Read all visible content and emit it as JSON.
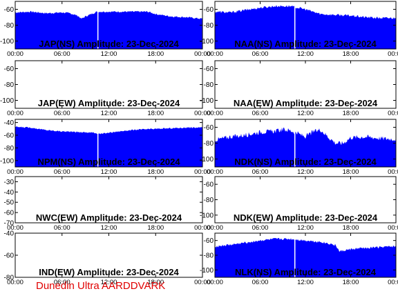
{
  "footer_text": "Dunedin Ultra AARDDVARK",
  "colors": {
    "fill": "#0000ff",
    "axis": "#000000",
    "gap": "#ffffff",
    "footer": "#e00000"
  },
  "chart_data": [
    {
      "type": "area",
      "title": "JAP(NS) Amplitude: 23-Dec-2024",
      "xticks": [
        "00:00",
        "06:00",
        "12:00",
        "18:00",
        "00:00"
      ],
      "xlim": [
        0,
        24
      ],
      "ylim": [
        -110,
        -50
      ],
      "yticks": [
        -60,
        -80,
        -100
      ],
      "gap_hours": 10.6,
      "noise": 1.0,
      "x": [
        0,
        2,
        4,
        6,
        7,
        8,
        8.5,
        9,
        10,
        10.5,
        12,
        14,
        16,
        17,
        18,
        20,
        22,
        24
      ],
      "values": [
        -64,
        -63,
        -65,
        -64,
        -65,
        -68,
        -72,
        -69,
        -65,
        -63,
        -63,
        -63,
        -63,
        -63,
        -66,
        -69,
        -70,
        -72
      ]
    },
    {
      "type": "area",
      "title": "NAA(NS) Amplitude: 23-Dec-2024",
      "xticks": [
        "00:00",
        "06:00",
        "12:00",
        "18:00",
        "00:00"
      ],
      "xlim": [
        0,
        24
      ],
      "ylim": [
        -110,
        -50
      ],
      "yticks": [
        -60,
        -80,
        -100
      ],
      "gap_hours": 10.6,
      "noise": 1.5,
      "x": [
        0,
        2,
        4,
        6,
        8,
        10,
        12,
        13,
        14,
        16,
        18,
        20,
        22,
        24
      ],
      "values": [
        -63,
        -64,
        -61,
        -58,
        -56,
        -56,
        -60,
        -63,
        -66,
        -67,
        -68,
        -70,
        -71,
        -71
      ]
    },
    {
      "type": "area",
      "title": "JAP(EW) Amplitude: 23-Dec-2024",
      "xticks": [
        "00:00",
        "06:00",
        "12:00",
        "18:00",
        "00:00"
      ],
      "xlim": [
        0,
        24
      ],
      "ylim": [
        -110,
        -50
      ],
      "yticks": [
        -60,
        -80,
        -100
      ],
      "x": [],
      "values": []
    },
    {
      "type": "area",
      "title": "NAA(EW) Amplitude: 23-Dec-2024",
      "xticks": [
        "00:00",
        "06:00",
        "12:00",
        "18:00",
        "00:00"
      ],
      "xlim": [
        0,
        24
      ],
      "ylim": [
        -110,
        -50
      ],
      "yticks": [
        -60,
        -80,
        -100
      ],
      "x": [],
      "values": []
    },
    {
      "type": "area",
      "title": "NPM(NS) Amplitude: 23-Dec-2024",
      "xticks": [
        "00:00",
        "06:00",
        "12:00",
        "18:00",
        "00:00"
      ],
      "xlim": [
        0,
        24
      ],
      "ylim": [
        -110,
        -35
      ],
      "yticks": [
        -40,
        -60,
        -80,
        -100
      ],
      "gap_hours": 10.6,
      "noise": 1.0,
      "x": [
        0,
        2,
        4,
        6,
        8,
        10,
        11,
        12,
        14,
        16,
        18,
        20,
        22,
        24
      ],
      "values": [
        -47,
        -48,
        -52,
        -54,
        -55,
        -56,
        -58,
        -56,
        -53,
        -51,
        -50,
        -49,
        -48,
        -48
      ]
    },
    {
      "type": "area",
      "title": "NDK(NS) Amplitude: 23-Dec-2024",
      "xticks": [
        "00:00",
        "06:00",
        "12:00",
        "18:00",
        "00:00"
      ],
      "xlim": [
        0,
        24
      ],
      "ylim": [
        -110,
        -50
      ],
      "yticks": [
        -60,
        -80,
        -100
      ],
      "gap_hours": 10.6,
      "noise": 3.0,
      "x": [
        0,
        2,
        4,
        6,
        8,
        9,
        10,
        11,
        12,
        13,
        14,
        15,
        16,
        17,
        18,
        20,
        22,
        24
      ],
      "values": [
        -76,
        -72,
        -70,
        -66,
        -65,
        -63,
        -64,
        -68,
        -72,
        -66,
        -63,
        -72,
        -80,
        -80,
        -73,
        -72,
        -74,
        -75
      ]
    },
    {
      "type": "area",
      "title": "NWC(EW) Amplitude: 23-Dec-2024",
      "xticks": [
        "00:00",
        "06:00",
        "12:00",
        "18:00",
        "00:00"
      ],
      "xlim": [
        0,
        24
      ],
      "ylim": [
        -70,
        -25
      ],
      "yticks": [
        -30,
        -40,
        -50,
        -60,
        -70
      ],
      "x": [],
      "values": []
    },
    {
      "type": "area",
      "title": "NDK(EW) Amplitude: 23-Dec-2024",
      "xticks": [
        "00:00",
        "06:00",
        "12:00",
        "18:00",
        "00:00"
      ],
      "xlim": [
        0,
        24
      ],
      "ylim": [
        -110,
        -50
      ],
      "yticks": [
        -60,
        -80,
        -100
      ],
      "x": [],
      "values": []
    },
    {
      "type": "area",
      "title": "IND(EW) Amplitude: 23-Dec-2024",
      "xticks": [
        "00:00",
        "06:00",
        "12:00",
        "18:00",
        "00:00"
      ],
      "xlim": [
        0,
        24
      ],
      "ylim": [
        -80,
        -40
      ],
      "yticks": [
        -40,
        -60,
        -80
      ],
      "x": [],
      "values": []
    },
    {
      "type": "area",
      "title": "NLK(NS) Amplitude: 23-Dec-2024",
      "xticks": [
        "00:00",
        "06:00",
        "12:00",
        "18:00",
        "00:00"
      ],
      "xlim": [
        0,
        24
      ],
      "ylim": [
        -110,
        -50
      ],
      "yticks": [
        -60,
        -80,
        -100
      ],
      "gap_hours": 10.6,
      "noise": 1.5,
      "x": [
        0,
        2,
        4,
        6,
        8,
        10,
        12,
        14,
        15,
        16,
        16.5,
        17,
        18,
        20,
        22,
        24
      ],
      "values": [
        -68,
        -66,
        -63,
        -60,
        -58,
        -58,
        -60,
        -62,
        -64,
        -66,
        -75,
        -74,
        -72,
        -70,
        -69,
        -68
      ]
    }
  ]
}
